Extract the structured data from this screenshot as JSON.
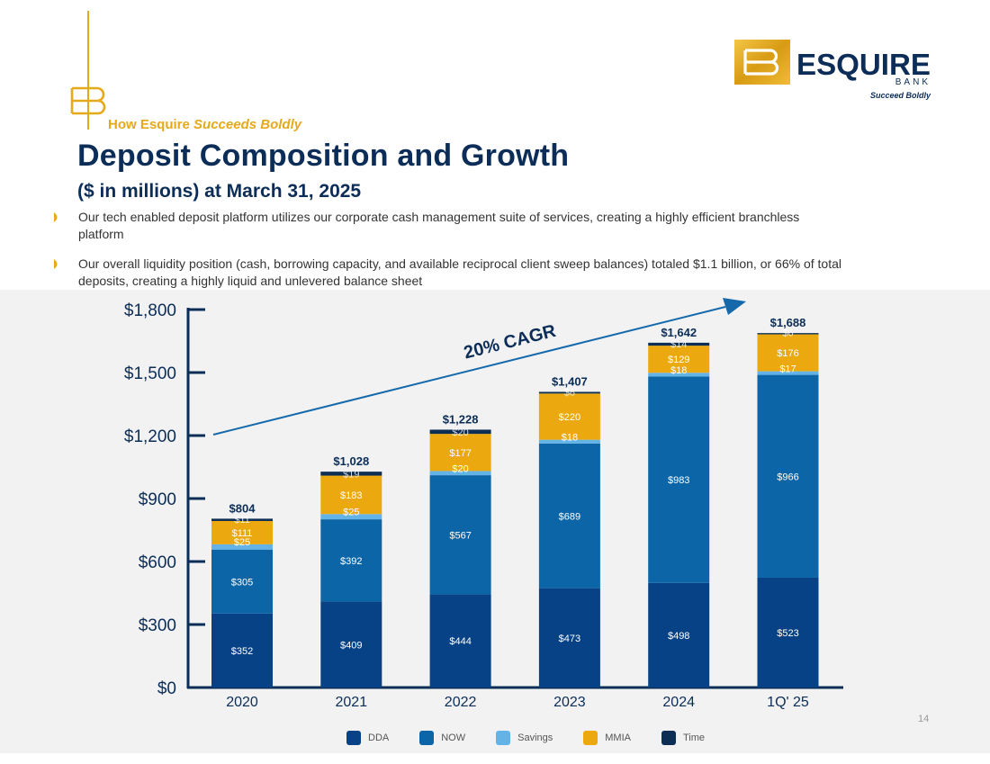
{
  "header": {
    "kicker_prefix": "How Esquire",
    "kicker_emphasis": "Succeeds Boldly",
    "title": "Deposit Composition and Growth",
    "subtitle": "($ in millions) at March 31, 2025"
  },
  "bullets": [
    "Our tech enabled deposit platform utilizes our corporate cash management suite of services, creating a highly efficient branchless platform",
    "Our overall liquidity position (cash, borrowing capacity, and available reciprocal client sweep balances) totaled $1.1 billion, or 66% of total deposits, creating a highly liquid and unlevered balance sheet"
  ],
  "logo": {
    "name": "ESQUIRE",
    "sub": "BANK",
    "tagline": "Succeed Boldly"
  },
  "page_number": "14",
  "colors": {
    "navy": "#0b2d57",
    "gold": "#e5a91a",
    "DDA": "#064285",
    "NOW": "#0c65a7",
    "Savings": "#63b3e6",
    "MMIA": "#eba90f",
    "Time": "#0c2e54",
    "arrow": "#1569aa"
  },
  "chart_data": {
    "type": "bar",
    "stacked": true,
    "categories": [
      "2020",
      "2021",
      "2022",
      "2023",
      "2024",
      "1Q' 25"
    ],
    "series": [
      {
        "name": "DDA",
        "values": [
          352,
          409,
          444,
          473,
          498,
          523
        ]
      },
      {
        "name": "NOW",
        "values": [
          305,
          392,
          567,
          689,
          983,
          966
        ]
      },
      {
        "name": "Savings",
        "values": [
          25,
          25,
          20,
          18,
          18,
          17
        ]
      },
      {
        "name": "MMIA",
        "values": [
          111,
          183,
          177,
          220,
          129,
          176
        ]
      },
      {
        "name": "Time",
        "values": [
          11,
          19,
          20,
          8,
          14,
          6
        ]
      }
    ],
    "totals": [
      "$804",
      "$1,028",
      "$1,228",
      "$1,407",
      "$1,642",
      "$1,688"
    ],
    "value_labels": [
      [
        "$352",
        "$409",
        "$444",
        "$473",
        "$498",
        "$523"
      ],
      [
        "$305",
        "$392",
        "$567",
        "$689",
        "$983",
        "$966"
      ],
      [
        "$25",
        "$25",
        "$20",
        "$18",
        "$18",
        "$17"
      ],
      [
        "$111",
        "$183",
        "$177",
        "$220",
        "$129",
        "$176"
      ],
      [
        "$11",
        "$19",
        "$20",
        "$8",
        "$14",
        "$6"
      ]
    ],
    "y_ticks": [
      0,
      300,
      600,
      900,
      1200,
      1500,
      1800
    ],
    "y_tick_labels": [
      "$0",
      "$300",
      "$600",
      "$900",
      "$1,200",
      "$1,500",
      "$1,800"
    ],
    "ylim": [
      0,
      1800
    ],
    "annotation": "20% CAGR",
    "legend": [
      "DDA",
      "NOW",
      "Savings",
      "MMIA",
      "Time"
    ],
    "legend_position": "bottom",
    "grid": false
  }
}
